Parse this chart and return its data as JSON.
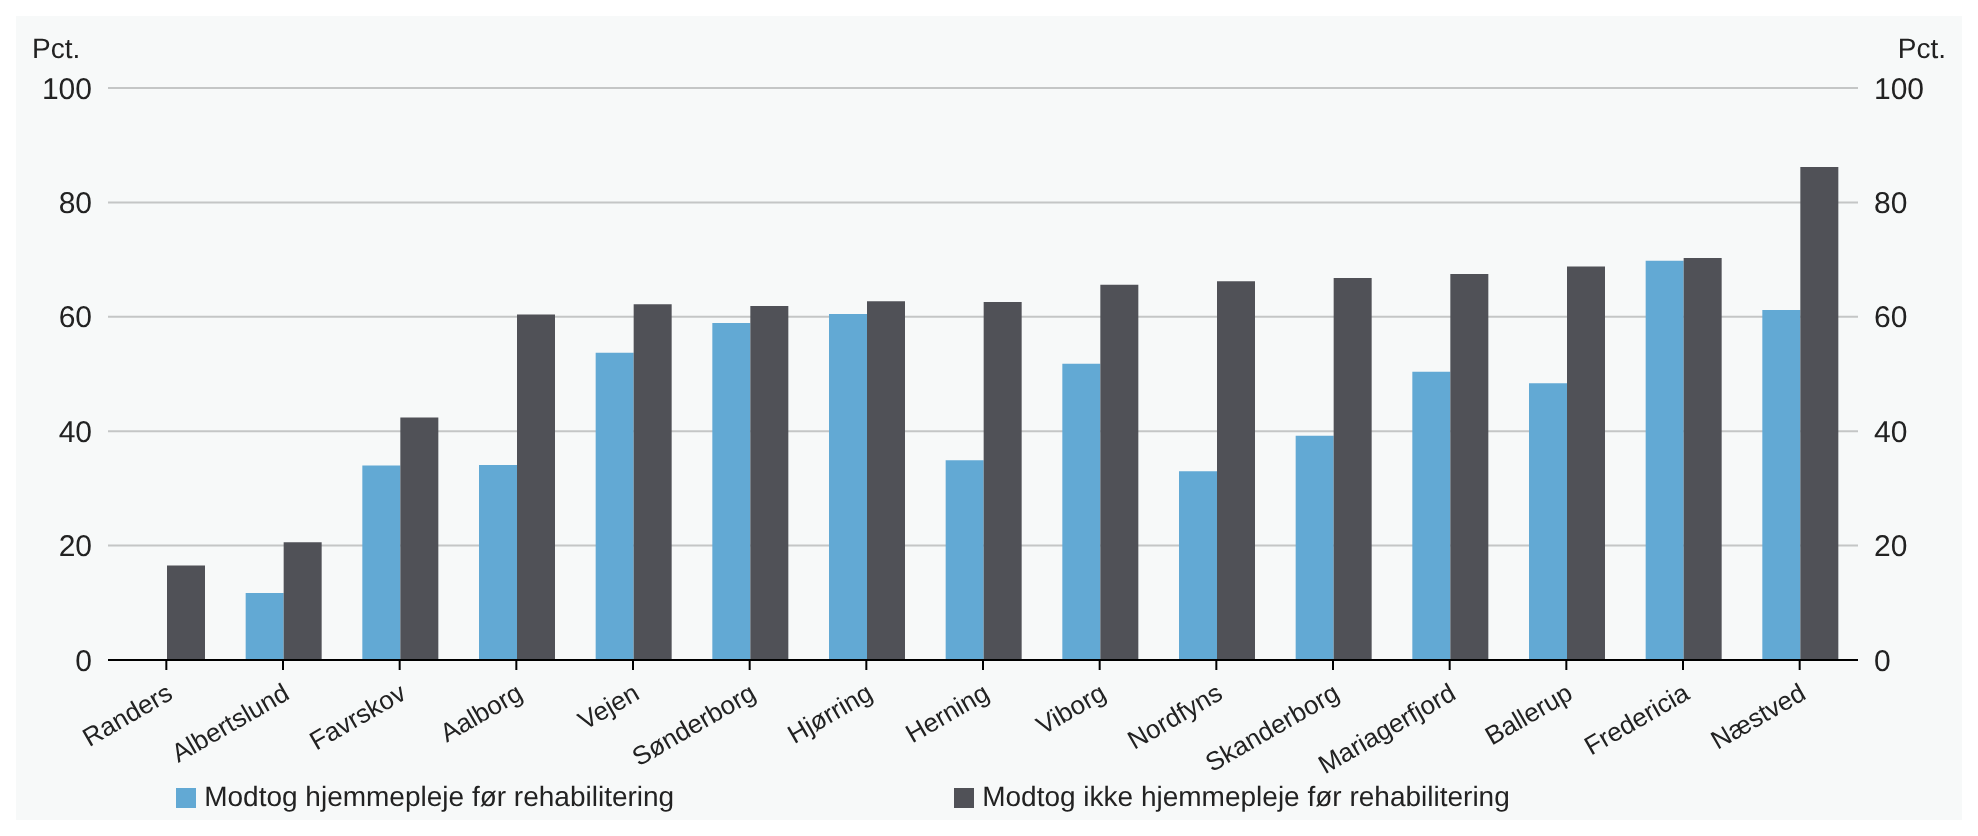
{
  "chart_data": {
    "type": "bar",
    "ylabel": "Pct.",
    "y2label": "Pct.",
    "categories": [
      "Randers",
      "Albertslund",
      "Favrskov",
      "Aalborg",
      "Vejen",
      "Sønderborg",
      "Hjørring",
      "Herning",
      "Viborg",
      "Nordfyns",
      "Skanderborg",
      "Mariagerfjord",
      "Ballerup",
      "Fredericia",
      "Næstved"
    ],
    "series": [
      {
        "name": "Modtog hjemmepleje før rehabilitering",
        "color": "#62a9d4",
        "values": [
          null,
          11.7,
          34,
          34.1,
          53.7,
          58.9,
          60.5,
          34.9,
          51.8,
          33,
          39.2,
          50.4,
          48.4,
          69.8,
          61.2
        ]
      },
      {
        "name": "Modtog ikke hjemmepleje før rehabilitering",
        "color": "#505157",
        "values": [
          16.5,
          20.6,
          42.4,
          60.4,
          62.2,
          61.9,
          62.7,
          62.6,
          65.6,
          66.2,
          66.8,
          67.5,
          68.8,
          70.3,
          86.2
        ]
      }
    ],
    "ylim": [
      0,
      100
    ],
    "yticks": [
      0,
      20,
      40,
      60,
      80,
      100
    ],
    "y2lim": [
      0,
      100
    ],
    "y2ticks": [
      0,
      20,
      40,
      60,
      80,
      100
    ],
    "grid": "y",
    "legend": "bottom"
  }
}
